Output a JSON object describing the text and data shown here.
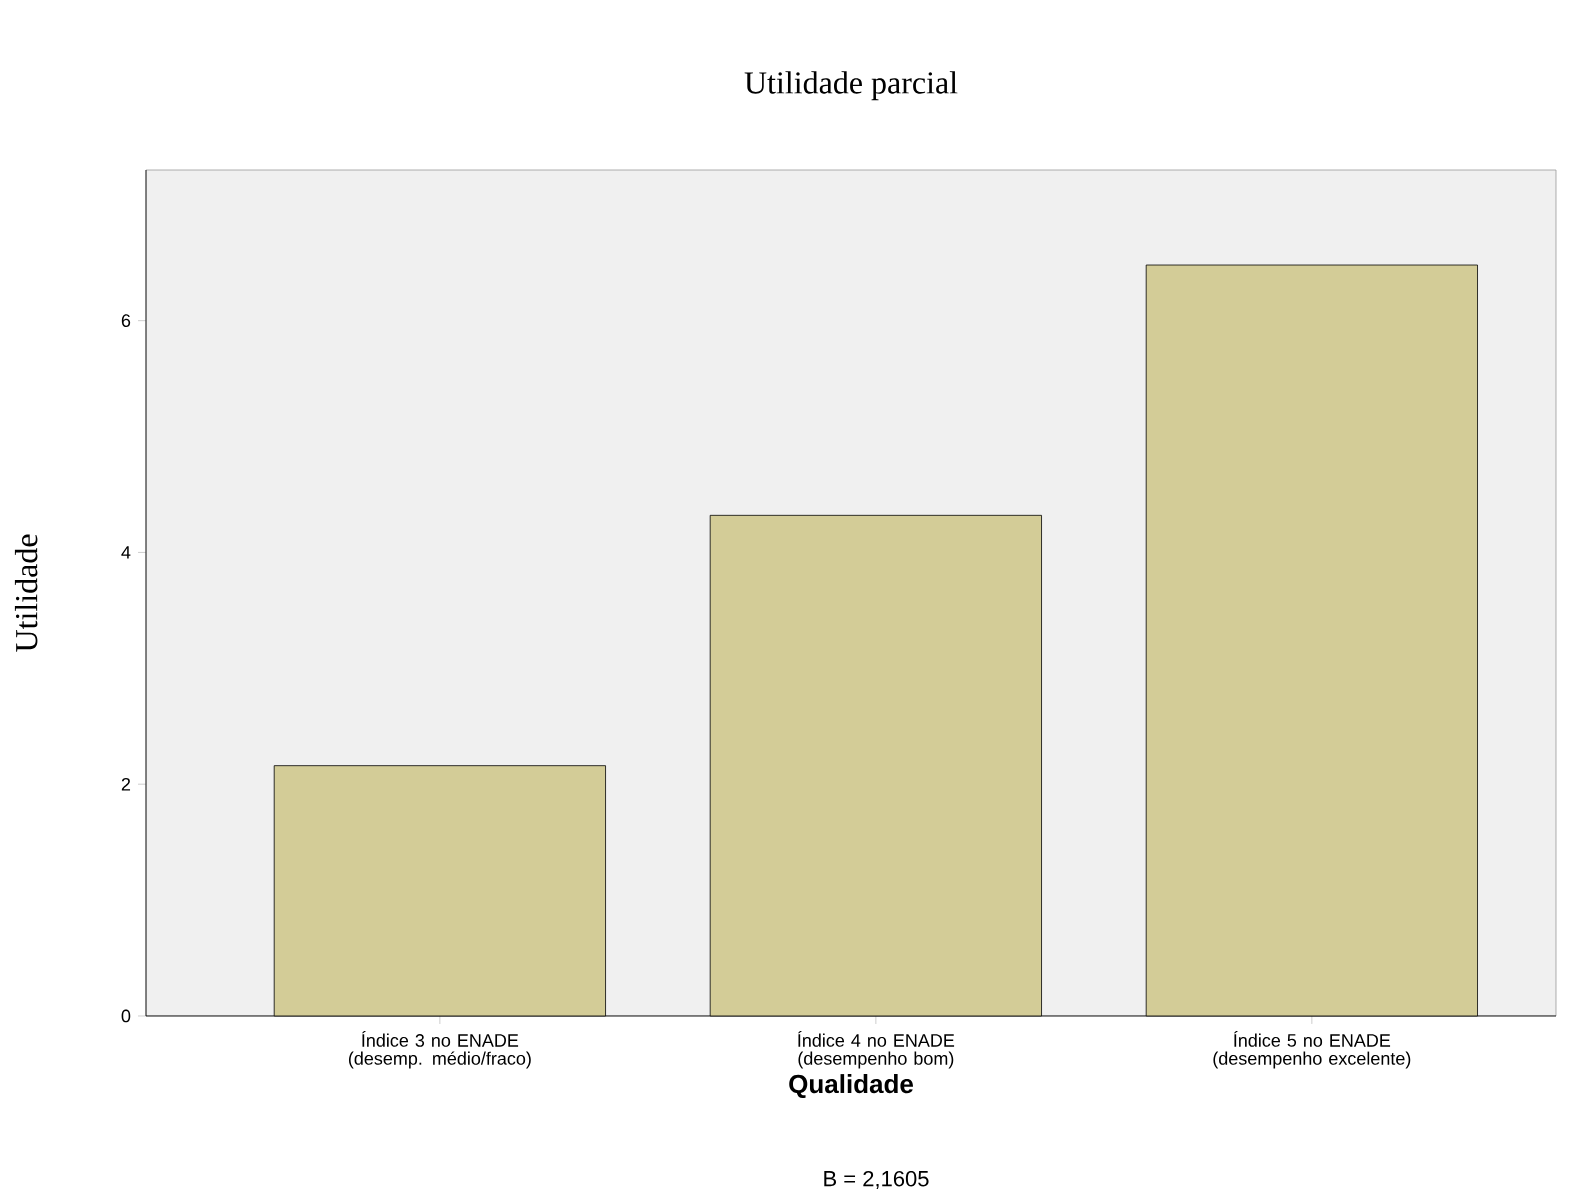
{
  "chart_data": {
    "type": "bar",
    "title": "Utilidade parcial",
    "xlabel": "Qualidade",
    "ylabel": "Utilidade",
    "annotations": [
      "B = 2,1605"
    ],
    "categories": [
      "Índice 3 no ENADE (desemp. médio/fraco)",
      "Índice 4 no ENADE (desempenho bom)",
      "Índice 5 no ENADE (desempenho excelente)"
    ],
    "values": [
      2.16,
      4.32,
      6.48
    ],
    "color": "#d3cc97",
    "ylim": [
      0,
      7.3
    ],
    "yticks": [
      0,
      2,
      4,
      6
    ]
  }
}
